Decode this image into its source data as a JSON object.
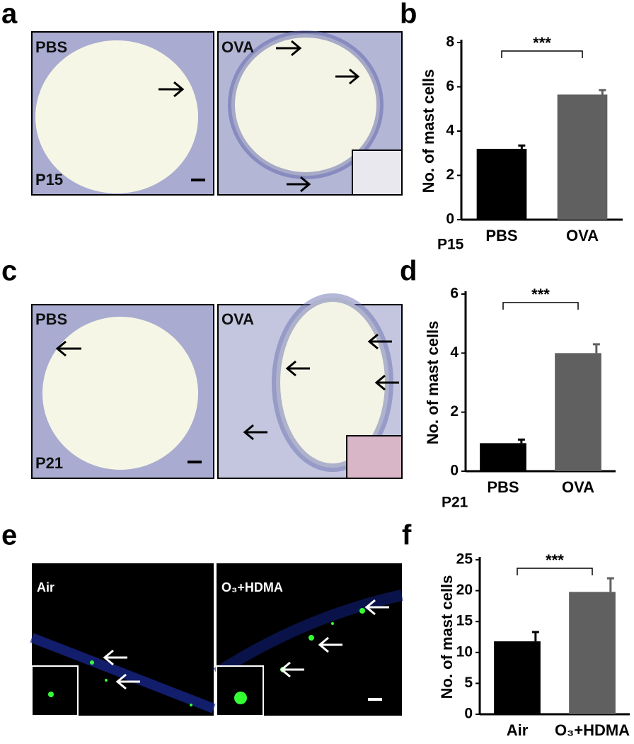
{
  "chart_data": [
    {
      "type": "bar",
      "panel": "b",
      "ylabel": "No. of mast cells",
      "categories": [
        "PBS",
        "OVA"
      ],
      "values": [
        3.2,
        5.65
      ],
      "errors": [
        0.15,
        0.2
      ],
      "colors": [
        "#000000",
        "#606060"
      ],
      "ylim": [
        0,
        8
      ],
      "yticks": [
        0,
        2,
        4,
        6,
        8
      ],
      "significance": "***",
      "note": "P15"
    },
    {
      "type": "bar",
      "panel": "d",
      "ylabel": "No. of mast cells",
      "categories": [
        "PBS",
        "OVA"
      ],
      "values": [
        0.95,
        4.0
      ],
      "errors": [
        0.12,
        0.3
      ],
      "colors": [
        "#000000",
        "#606060"
      ],
      "ylim": [
        0,
        6
      ],
      "yticks": [
        0,
        2,
        4,
        6
      ],
      "significance": "***",
      "note": "P21"
    },
    {
      "type": "bar",
      "panel": "f",
      "ylabel": "No. of mast cells",
      "categories": [
        "Air",
        "O₃+HDMA"
      ],
      "values": [
        11.8,
        19.8
      ],
      "errors": [
        1.5,
        2.2
      ],
      "colors": [
        "#000000",
        "#606060"
      ],
      "ylim": [
        0,
        25
      ],
      "yticks": [
        0,
        5,
        10,
        15,
        20,
        25
      ],
      "significance": "***"
    }
  ],
  "panels": [
    {
      "letter": "a",
      "images": [
        [
          "PBS",
          "P15"
        ],
        [
          "OVA"
        ]
      ]
    },
    {
      "letter": "c",
      "images": [
        [
          "PBS",
          "P21"
        ],
        [
          "OVA"
        ]
      ]
    },
    {
      "letter": "e",
      "images": [
        [
          "Air"
        ],
        [
          "O₃+HDMA"
        ]
      ]
    }
  ]
}
